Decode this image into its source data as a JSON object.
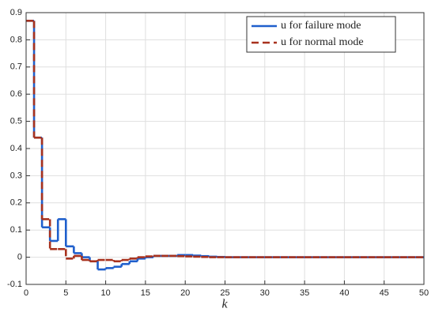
{
  "chart_data": {
    "type": "line",
    "drawstyle": "steps-post",
    "x": [
      0,
      1,
      2,
      3,
      4,
      5,
      6,
      7,
      8,
      9,
      10,
      11,
      12,
      13,
      14,
      15,
      16,
      17,
      18,
      19,
      20,
      21,
      22,
      23,
      24,
      25,
      26,
      27,
      28,
      29,
      30,
      31,
      32,
      33,
      34,
      35,
      36,
      37,
      38,
      39,
      40,
      41,
      42,
      43,
      44,
      45,
      46,
      47,
      48,
      49,
      50
    ],
    "series": [
      {
        "name": "u for failure mode",
        "color": "#1f5fcc",
        "dashed": false,
        "values": [
          0.87,
          0.44,
          0.11,
          0.06,
          0.14,
          0.04,
          0.015,
          0,
          -0.015,
          -0.045,
          -0.04,
          -0.035,
          -0.025,
          -0.015,
          -0.005,
          0,
          0.005,
          0.005,
          0.005,
          0.008,
          0.008,
          0.006,
          0.004,
          0.002,
          0.001,
          0,
          0,
          0,
          0,
          0,
          0,
          0,
          0,
          0,
          0,
          0,
          0,
          0,
          0,
          0,
          0,
          0,
          0,
          0,
          0,
          0,
          0,
          0,
          0,
          0,
          0
        ]
      },
      {
        "name": "u for normal mode",
        "color": "#a8321e",
        "dashed": true,
        "values": [
          0.87,
          0.44,
          0.14,
          0.03,
          0.03,
          -0.005,
          0.005,
          -0.01,
          -0.015,
          -0.01,
          -0.01,
          -0.015,
          -0.01,
          -0.005,
          0,
          0.003,
          0.005,
          0.005,
          0.005,
          0.004,
          0.003,
          0.002,
          0.001,
          0,
          0,
          0,
          0,
          0,
          0,
          0,
          0,
          0,
          0,
          0,
          0,
          0,
          0,
          0,
          0,
          0,
          0,
          0,
          0,
          0,
          0,
          0,
          0,
          0,
          0,
          0,
          0
        ]
      }
    ],
    "x_label": "k",
    "xlim": [
      0,
      50
    ],
    "xticks": [
      0,
      5,
      10,
      15,
      20,
      25,
      30,
      35,
      40,
      45,
      50
    ],
    "ylim": [
      -0.1,
      0.9
    ],
    "yticks": [
      -0.1,
      0,
      0.1,
      0.2,
      0.3,
      0.4,
      0.5,
      0.6,
      0.7,
      0.8,
      0.9
    ],
    "grid": true,
    "legend": "upper right"
  }
}
